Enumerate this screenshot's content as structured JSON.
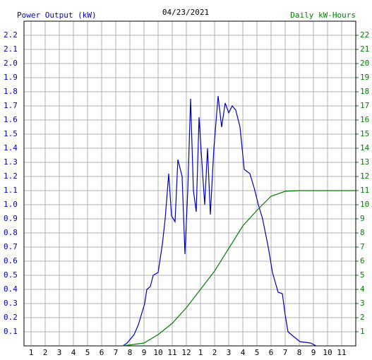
{
  "chart_data": {
    "type": "line",
    "title": "04/23/2021",
    "y_label": "Power Output (kW)",
    "y2_label": "Daily kW-Hours",
    "xlim": [
      0.5,
      24
    ],
    "xticks": [
      1,
      2,
      3,
      4,
      5,
      6,
      7,
      8,
      9,
      10,
      11,
      12,
      {
        "value": 13,
        "label": "1"
      },
      {
        "value": 14,
        "label": "2"
      },
      {
        "value": 15,
        "label": "3"
      },
      {
        "value": 16,
        "label": "4"
      },
      {
        "value": 17,
        "label": "5"
      },
      {
        "value": 18,
        "label": "6"
      },
      {
        "value": 19,
        "label": "7"
      },
      {
        "value": 20,
        "label": "8"
      },
      {
        "value": 21,
        "label": "9"
      },
      {
        "value": 22,
        "label": "10"
      },
      {
        "value": 23,
        "label": "11"
      }
    ],
    "ylim": [
      0,
      2.3
    ],
    "yticks": [
      0.1,
      0.2,
      0.3,
      0.4,
      0.5,
      0.6,
      0.7,
      0.8,
      0.9,
      {
        "value": 1,
        "label": "1.0"
      },
      1.1,
      1.2,
      1.3,
      1.4,
      1.5,
      1.6,
      1.7,
      1.8,
      1.9,
      {
        "value": 2,
        "label": "2.0"
      },
      2.1,
      2.2
    ],
    "y2lim": [
      0,
      23
    ],
    "y2ticks": [
      1,
      2,
      3,
      4,
      5,
      6,
      7,
      8,
      9,
      10,
      11,
      12,
      13,
      14,
      15,
      16,
      17,
      18,
      19,
      20,
      21,
      22
    ],
    "grid": true,
    "series": [
      {
        "color": "#0000c0",
        "axis": "y",
        "x": [
          7.5,
          7.8,
          8.3,
          8.6,
          9.05,
          9.2,
          9.45,
          9.65,
          10,
          10.3,
          10.5,
          10.75,
          10.95,
          11.2,
          11.4,
          11.7,
          11.9,
          12.1,
          12.3,
          12.5,
          12.7,
          12.9,
          13.1,
          13.3,
          13.5,
          13.7,
          13.95,
          14.25,
          14.5,
          14.75,
          15,
          15.25,
          15.5,
          15.8,
          16.1,
          16.5,
          16.8,
          17.1,
          17.4,
          17.8,
          18.1,
          18.5,
          18.8,
          19,
          19.2,
          19.55,
          20.05,
          20.8,
          21.2
        ],
        "values": [
          0,
          0.02,
          0.08,
          0.15,
          0.3,
          0.4,
          0.42,
          0.5,
          0.52,
          0.72,
          0.9,
          1.22,
          0.92,
          0.88,
          1.32,
          1.2,
          0.65,
          1.1,
          1.75,
          1.1,
          0.95,
          1.62,
          1.3,
          1.0,
          1.4,
          0.93,
          1.4,
          1.77,
          1.55,
          1.72,
          1.65,
          1.7,
          1.67,
          1.55,
          1.25,
          1.22,
          1.12,
          1.0,
          0.9,
          0.7,
          0.52,
          0.38,
          0.37,
          0.22,
          0.1,
          0.07,
          0.03,
          0.02,
          0
        ]
      },
      {
        "color": "#008000",
        "axis": "y2",
        "x": [
          7.5,
          9,
          10,
          11,
          12,
          13,
          14,
          15,
          16,
          17,
          18,
          19,
          20,
          24
        ],
        "values": [
          0,
          0.2,
          0.8,
          1.6,
          2.7,
          4.0,
          5.3,
          6.9,
          8.5,
          9.6,
          10.6,
          10.95,
          11.0,
          11.0
        ]
      }
    ]
  }
}
